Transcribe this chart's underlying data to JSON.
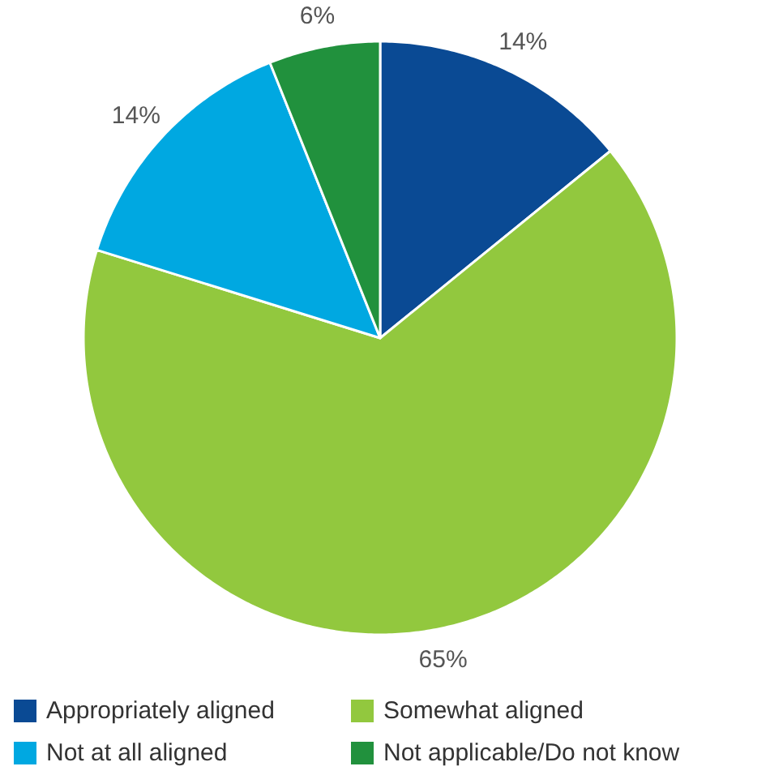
{
  "chart_data": {
    "type": "pie",
    "categories": [
      "Appropriately aligned",
      "Somewhat aligned",
      "Not at all aligned",
      "Not applicable/Do not know"
    ],
    "values": [
      14,
      65,
      14,
      6
    ],
    "colors": [
      "#0a4a94",
      "#92c83e",
      "#00a8e1",
      "#21913d"
    ],
    "value_labels": [
      "14%",
      "65%",
      "14%",
      "6%"
    ],
    "legend": "bottom"
  }
}
